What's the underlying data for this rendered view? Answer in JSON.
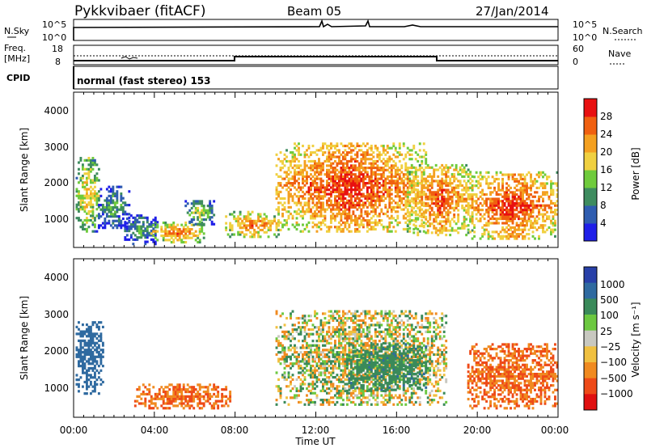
{
  "header": {
    "title": "Pykkvibaer (fitACF)",
    "beam": "Beam 05",
    "date": "27/Jan/2014"
  },
  "panels": {
    "nsky": {
      "label": "N.Sky",
      "right_label": "N.Search",
      "left_ticks": [
        "10^5",
        "10^0"
      ],
      "right_ticks": [
        "10^5",
        "10^0"
      ]
    },
    "freq": {
      "label_top": "Freq.",
      "label_bottom": "[MHz]",
      "left_ticks": [
        "18",
        "8"
      ],
      "right_ticks": [
        "60",
        "0"
      ],
      "right_label": "Nave"
    },
    "cpid": {
      "label": "CPID",
      "text": "normal (fast stereo) 153"
    }
  },
  "axes": {
    "ylabel": "Slant Range [km]",
    "xlabel": "Time UT",
    "y_ticks": [
      "1000",
      "2000",
      "3000",
      "4000"
    ],
    "x_ticks": [
      "00:00",
      "04:00",
      "08:00",
      "12:00",
      "16:00",
      "20:00",
      "00:00"
    ]
  },
  "colorbars": {
    "power": {
      "label": "Power [dB]",
      "ticks": [
        "4",
        "8",
        "12",
        "16",
        "20",
        "24",
        "28"
      ],
      "colors": [
        "#1f1fe8",
        "#2f5db0",
        "#3e8c5f",
        "#6fcb3c",
        "#f0d040",
        "#f4a020",
        "#f06010",
        "#e81010"
      ]
    },
    "velocity": {
      "label": "Velocity [m s⁻¹]",
      "ticks": [
        "1000",
        "500",
        "100",
        "25",
        "−25",
        "−100",
        "−500",
        "−1000"
      ],
      "colors": [
        "#2840a8",
        "#2f6aa0",
        "#3a8a5a",
        "#6cc840",
        "#c8c8c0",
        "#f0c040",
        "#f08a20",
        "#ee4a18",
        "#e01010"
      ]
    }
  },
  "chart_data": [
    {
      "type": "line",
      "title": "N.Sky / N.Search",
      "x_range_hours": [
        0,
        24
      ],
      "series": [
        {
          "values": [
            [
              0,
              5
            ],
            [
              24,
              5
            ]
          ]
        }
      ]
    },
    {
      "type": "line",
      "title": "Freq. [MHz] / Nave",
      "x_range_hours": [
        0,
        24
      ],
      "series": [
        {
          "values": [
            [
              0,
              10.3
            ],
            [
              8.0,
              10.3
            ],
            [
              8.0,
              11.9
            ],
            [
              18.0,
              11.9
            ],
            [
              18.0,
              10.3
            ],
            [
              24,
              10.3
            ]
          ]
        }
      ]
    },
    {
      "type": "heatmap",
      "title": "Power [dB]",
      "x_range_hours": [
        0,
        24
      ],
      "ylim_km": [
        180,
        4500
      ],
      "echo_regions": [
        {
          "t": [
            0.1,
            1.3
          ],
          "r": [
            600,
            2700
          ],
          "peak_db": 22
        },
        {
          "t": [
            1.2,
            2.8
          ],
          "r": [
            700,
            1900
          ],
          "peak_db": 14
        },
        {
          "t": [
            2.5,
            4.2
          ],
          "r": [
            250,
            1100
          ],
          "peak_db": 14
        },
        {
          "t": [
            3.8,
            6.5
          ],
          "r": [
            300,
            900
          ],
          "peak_db": 26
        },
        {
          "t": [
            5.5,
            7.0
          ],
          "r": [
            800,
            1500
          ],
          "peak_db": 18
        },
        {
          "t": [
            7.5,
            10.3
          ],
          "r": [
            450,
            1200
          ],
          "peak_db": 26
        },
        {
          "t": [
            10.0,
            17.5
          ],
          "r": [
            600,
            3100
          ],
          "peak_db": 30
        },
        {
          "t": [
            16.5,
            19.8
          ],
          "r": [
            500,
            2500
          ],
          "peak_db": 28
        },
        {
          "t": [
            19.5,
            24.0
          ],
          "r": [
            400,
            2300
          ],
          "peak_db": 30
        }
      ]
    },
    {
      "type": "heatmap",
      "title": "Velocity [m/s]",
      "x_range_hours": [
        0,
        24
      ],
      "ylim_km": [
        180,
        4500
      ],
      "echo_regions": [
        {
          "t": [
            0.1,
            1.5
          ],
          "r": [
            800,
            2800
          ],
          "velocity_ms": 500
        },
        {
          "t": [
            3.0,
            7.8
          ],
          "r": [
            400,
            1100
          ],
          "velocity_ms": -300
        },
        {
          "t": [
            10.0,
            18.5
          ],
          "r": [
            500,
            3100
          ],
          "velocity_ms": 0
        },
        {
          "t": [
            13.5,
            17.5
          ],
          "r": [
            900,
            2200
          ],
          "velocity_ms": 200
        },
        {
          "t": [
            19.5,
            24.0
          ],
          "r": [
            400,
            2200
          ],
          "velocity_ms": -300
        }
      ]
    }
  ]
}
